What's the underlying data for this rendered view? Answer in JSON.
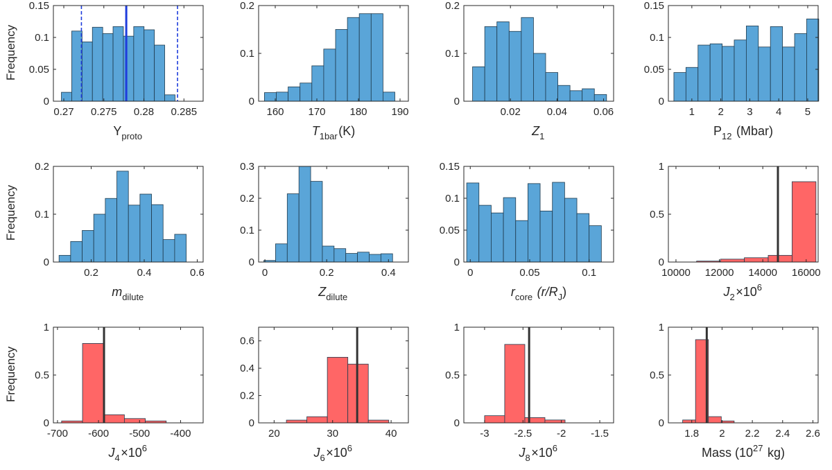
{
  "figure": {
    "ylabel": "Frequency",
    "colors": {
      "blue_bar": "#5AA5D8",
      "red_bar": "#FF6666",
      "bar_edge": "#1f3a4d",
      "median_blue": "#1e3cdc",
      "truth_line": "#333333"
    }
  },
  "chart_data": [
    {
      "type": "bar",
      "title": "",
      "xlabel": {
        "main": "Y",
        "sub": "proto",
        "sup": "",
        "tail": "",
        "italic": false
      },
      "bins": {
        "start": 0.2697,
        "width": 0.00129
      },
      "values": [
        0.014,
        0.11,
        0.093,
        0.116,
        0.106,
        0.117,
        0.102,
        0.117,
        0.112,
        0.088,
        0.01
      ],
      "xlim": [
        0.2687,
        0.2874
      ],
      "ylim": [
        0,
        0.15
      ],
      "xticks": [
        0.27,
        0.275,
        0.28,
        0.285
      ],
      "xticklabels": [
        "0.27",
        "0.275",
        "0.28",
        "0.285"
      ],
      "yticks": [
        0,
        0.05,
        0.1,
        0.15
      ],
      "yticklabels": [
        "0",
        "0.05",
        "0.1",
        "0.15"
      ],
      "color": "blue",
      "lines": [
        {
          "x": 0.2778,
          "style": "solid",
          "color": "blue"
        },
        {
          "x": 0.2722,
          "style": "dashed",
          "color": "blue"
        },
        {
          "x": 0.2842,
          "style": "dashed",
          "color": "blue"
        }
      ]
    },
    {
      "type": "bar",
      "title": "",
      "xlabel": {
        "main": "T",
        "sub": "1bar",
        "sup": "",
        "tail": "(K)",
        "italic": true
      },
      "bins": {
        "start": 157.4,
        "width": 2.85
      },
      "values": [
        0.018,
        0.019,
        0.03,
        0.038,
        0.074,
        0.109,
        0.15,
        0.175,
        0.183,
        0.183,
        0.019
      ],
      "xlim": [
        156.0,
        192.0
      ],
      "ylim": [
        0,
        0.2
      ],
      "xticks": [
        160,
        170,
        180,
        190
      ],
      "xticklabels": [
        "160",
        "170",
        "180",
        "190"
      ],
      "yticks": [
        0,
        0.1,
        0.2
      ],
      "yticklabels": [
        "0",
        "0.1",
        "0.2"
      ],
      "color": "blue",
      "lines": []
    },
    {
      "type": "bar",
      "title": "",
      "xlabel": {
        "main": "Z",
        "sub": "1",
        "sup": "",
        "tail": "",
        "italic": true
      },
      "bins": {
        "start": 0.00374,
        "width": 0.00523
      },
      "values": [
        0.072,
        0.156,
        0.166,
        0.146,
        0.175,
        0.1,
        0.06,
        0.033,
        0.022,
        0.026,
        0.014
      ],
      "xlim": [
        -1e-05,
        0.0643
      ],
      "ylim": [
        0,
        0.2
      ],
      "xticks": [
        0.02,
        0.04,
        0.06
      ],
      "xticklabels": [
        "0.02",
        "0.04",
        "0.06"
      ],
      "yticks": [
        0,
        0.1,
        0.2
      ],
      "yticklabels": [
        "0",
        "0.1",
        "0.2"
      ],
      "color": "blue",
      "lines": []
    },
    {
      "type": "bar",
      "title": "",
      "xlabel": {
        "main": "P",
        "sub": "12",
        "sup": "",
        "tail": " (Mbar)",
        "italic": false
      },
      "bins": {
        "start": 0.38,
        "width": 0.4167
      },
      "values": [
        0.045,
        0.053,
        0.088,
        0.09,
        0.086,
        0.096,
        0.118,
        0.085,
        0.117,
        0.085,
        0.106,
        0.129
      ],
      "xlim": [
        0.19,
        5.36
      ],
      "ylim": [
        0,
        0.15
      ],
      "xticks": [
        1,
        2,
        3,
        4,
        5
      ],
      "xticklabels": [
        "1",
        "2",
        "3",
        "4",
        "5"
      ],
      "yticks": [
        0,
        0.05,
        0.1,
        0.15
      ],
      "yticklabels": [
        "0",
        "0.05",
        "0.1",
        "0.15"
      ],
      "color": "blue",
      "lines": []
    },
    {
      "type": "bar",
      "title": "",
      "xlabel": {
        "main": "m",
        "sub": "dilute",
        "sup": "",
        "tail": "",
        "italic": true
      },
      "bins": {
        "start": 0.0788,
        "width": 0.0436
      },
      "values": [
        0.014,
        0.043,
        0.066,
        0.1,
        0.133,
        0.19,
        0.119,
        0.142,
        0.12,
        0.047,
        0.058
      ],
      "xlim": [
        0.0574,
        0.6223
      ],
      "ylim": [
        0,
        0.2
      ],
      "xticks": [
        0.2,
        0.4,
        0.6
      ],
      "xticklabels": [
        "0.2",
        "0.4",
        "0.6"
      ],
      "yticks": [
        0,
        0.1,
        0.2
      ],
      "yticklabels": [
        "0",
        "0.1",
        "0.2"
      ],
      "color": "blue",
      "lines": []
    },
    {
      "type": "bar",
      "title": "",
      "xlabel": {
        "main": "Z",
        "sub": "dilute",
        "sup": "",
        "tail": "",
        "italic": true
      },
      "bins": {
        "start": -0.00347,
        "width": 0.03789
      },
      "values": [
        0.005,
        0.057,
        0.214,
        0.3,
        0.253,
        0.05,
        0.042,
        0.027,
        0.031,
        0.024,
        0.026
      ],
      "xlim": [
        -0.0204,
        0.4644
      ],
      "ylim": [
        0,
        0.3
      ],
      "xticks": [
        0,
        0.2,
        0.4
      ],
      "xticklabels": [
        "0",
        "0.2",
        "0.4"
      ],
      "yticks": [
        0,
        0.1,
        0.2,
        0.3
      ],
      "yticklabels": [
        "0",
        "0.1",
        "0.2",
        "0.3"
      ],
      "color": "blue",
      "lines": []
    },
    {
      "type": "bar",
      "title": "",
      "xlabel": {
        "main": "r",
        "sub": "core",
        "sup": "",
        "tail": " (r/R_J)",
        "italic": true
      },
      "bins": {
        "start": -0.003,
        "width": 0.0103
      },
      "values": [
        0.124,
        0.089,
        0.077,
        0.101,
        0.065,
        0.123,
        0.08,
        0.125,
        0.1,
        0.076,
        0.057
      ],
      "xlim": [
        -0.0054,
        0.1206
      ],
      "ylim": [
        0,
        0.15
      ],
      "xticks": [
        0,
        0.05,
        0.1
      ],
      "xticklabels": [
        "0",
        "0.05",
        "0.1"
      ],
      "yticks": [
        0,
        0.05,
        0.1,
        0.15
      ],
      "yticklabels": [
        "0",
        "0.05",
        "0.1",
        "0.15"
      ],
      "color": "blue",
      "lines": []
    },
    {
      "type": "bar",
      "title": "",
      "xlabel": {
        "main": "J",
        "sub": "2",
        "sup": "6",
        "tail": "",
        "italic": true,
        "times": true
      },
      "bins": {
        "start": 10950,
        "width": 1100
      },
      "values": [
        0.01,
        0.03,
        0.045,
        0.07,
        0.84
      ],
      "xlim": [
        9650,
        16550
      ],
      "ylim": [
        0,
        1
      ],
      "xticks": [
        10000,
        12000,
        14000,
        16000
      ],
      "xticklabels": [
        "10000",
        "12000",
        "14000",
        "16000"
      ],
      "yticks": [
        0,
        0.5,
        1
      ],
      "yticklabels": [
        "0",
        "0.5",
        "1"
      ],
      "color": "red",
      "lines": [
        {
          "x": 14697,
          "style": "solid",
          "color": "truth"
        }
      ]
    },
    {
      "type": "bar",
      "title": "",
      "xlabel": {
        "main": "J",
        "sub": "4",
        "sup": "6",
        "tail": "",
        "italic": true,
        "times": true
      },
      "bins": {
        "start": -690,
        "width": 51
      },
      "values": [
        0.02,
        0.83,
        0.085,
        0.045,
        0.02
      ],
      "xlim": [
        -710,
        -345
      ],
      "ylim": [
        0,
        1
      ],
      "xticks": [
        -700,
        -600,
        -500,
        -400
      ],
      "xticklabels": [
        "-700",
        "-600",
        "-500",
        "-400"
      ],
      "yticks": [
        0,
        0.5,
        1
      ],
      "yticklabels": [
        "0",
        "0.5",
        "1"
      ],
      "color": "red",
      "lines": [
        {
          "x": -586.6,
          "style": "solid",
          "color": "truth"
        }
      ]
    },
    {
      "type": "bar",
      "title": "",
      "xlabel": {
        "main": "J",
        "sub": "6",
        "sup": "6",
        "tail": "",
        "italic": true,
        "times": true
      },
      "bins": {
        "start": 22.1,
        "width": 3.5
      },
      "values": [
        0.02,
        0.045,
        0.48,
        0.43,
        0.02
      ],
      "xlim": [
        17.35,
        42.95
      ],
      "ylim": [
        0,
        0.7
      ],
      "xticks": [
        20,
        30,
        40
      ],
      "xticklabels": [
        "20",
        "30",
        "40"
      ],
      "yticks": [
        0,
        0.2,
        0.4,
        0.6
      ],
      "yticklabels": [
        "0",
        "0.2",
        "0.4",
        "0.6"
      ],
      "color": "red",
      "lines": [
        {
          "x": 34.2,
          "style": "solid",
          "color": "truth"
        }
      ]
    },
    {
      "type": "bar",
      "title": "",
      "xlabel": {
        "main": "J",
        "sub": "8",
        "sup": "6",
        "tail": "",
        "italic": true,
        "times": true
      },
      "bins": {
        "start": -3.0,
        "width": 0.262
      },
      "values": [
        0.075,
        0.82,
        0.055,
        0.03
      ],
      "xlim": [
        -3.27,
        -1.32
      ],
      "ylim": [
        0,
        1
      ],
      "xticks": [
        -3,
        -2.5,
        -2,
        -1.5
      ],
      "xticklabels": [
        "-3",
        "-2.5",
        "-2",
        "-1.5"
      ],
      "yticks": [
        0,
        0.5,
        1
      ],
      "yticklabels": [
        "0",
        "0.5",
        "1"
      ],
      "color": "red",
      "lines": [
        {
          "x": -2.42,
          "style": "solid",
          "color": "truth"
        }
      ]
    },
    {
      "type": "bar",
      "title": "",
      "xlabel": {
        "main": "Mass (10",
        "sub": "",
        "sup": "27",
        "tail": " kg)",
        "italic": false
      },
      "bins": {
        "start": 1.74,
        "width": 0.085
      },
      "values": [
        0.03,
        0.87,
        0.065,
        0.02
      ],
      "xlim": [
        1.6456,
        2.6345
      ],
      "ylim": [
        0,
        1
      ],
      "xticks": [
        1.8,
        2,
        2.2,
        2.4,
        2.6
      ],
      "xticklabels": [
        "1.8",
        "2",
        "2.2",
        "2.4",
        "2.6"
      ],
      "yticks": [
        0,
        0.5,
        1
      ],
      "yticklabels": [
        "0",
        "0.5",
        "1"
      ],
      "color": "red",
      "lines": [
        {
          "x": 1.899,
          "style": "solid",
          "color": "truth"
        }
      ]
    }
  ]
}
